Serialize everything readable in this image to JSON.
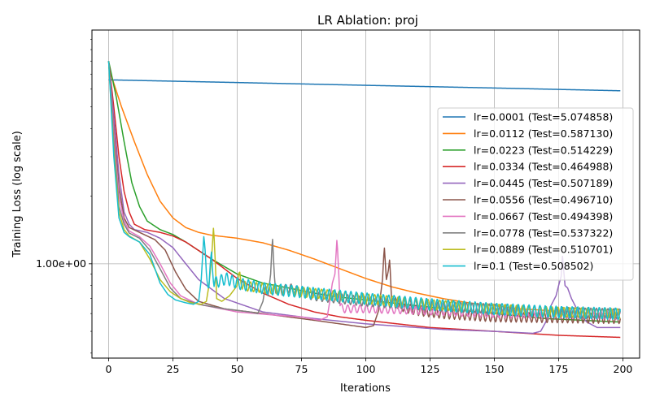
{
  "chart_data": {
    "type": "line",
    "title": "LR Ablation: proj",
    "xlabel": "Iterations",
    "ylabel": "Training Loss (log scale)",
    "xlim": [
      -6.5,
      206.5
    ],
    "ylim": [
      0.38,
      11.0
    ],
    "y_scale": "log",
    "x_ticks": [
      0,
      25,
      50,
      75,
      100,
      125,
      150,
      175,
      200
    ],
    "y_ticks": [
      {
        "value": 1.0,
        "label": "1.00e+00"
      }
    ],
    "grid": true,
    "legend_position": "right",
    "series": [
      {
        "name": "lr=0.0001 (Test=5.074858)",
        "color": "#1f77b4",
        "points": [
          [
            0,
            6.6
          ],
          [
            50,
            6.42
          ],
          [
            100,
            6.24
          ],
          [
            150,
            6.07
          ],
          [
            199,
            5.9
          ]
        ]
      },
      {
        "name": "lr=0.0112 (Test=0.587130)",
        "color": "#ff7f0e",
        "points": [
          [
            0,
            7.5
          ],
          [
            5,
            5.0
          ],
          [
            10,
            3.5
          ],
          [
            15,
            2.5
          ],
          [
            20,
            1.9
          ],
          [
            25,
            1.6
          ],
          [
            30,
            1.45
          ],
          [
            35,
            1.38
          ],
          [
            40,
            1.34
          ],
          [
            50,
            1.3
          ],
          [
            60,
            1.24
          ],
          [
            70,
            1.15
          ],
          [
            80,
            1.05
          ],
          [
            90,
            0.95
          ],
          [
            100,
            0.86
          ],
          [
            110,
            0.79
          ],
          [
            120,
            0.74
          ],
          [
            130,
            0.7
          ],
          [
            140,
            0.67
          ],
          [
            150,
            0.65
          ],
          [
            160,
            0.63
          ],
          [
            170,
            0.62
          ],
          [
            180,
            0.61
          ],
          [
            190,
            0.6
          ],
          [
            199,
            0.6
          ]
        ]
      },
      {
        "name": "lr=0.0223 (Test=0.514229)",
        "color": "#2ca02c",
        "points": [
          [
            0,
            8.0
          ],
          [
            3,
            5.5
          ],
          [
            6,
            3.5
          ],
          [
            9,
            2.3
          ],
          [
            12,
            1.8
          ],
          [
            15,
            1.55
          ],
          [
            20,
            1.42
          ],
          [
            25,
            1.35
          ],
          [
            30,
            1.25
          ],
          [
            40,
            1.05
          ],
          [
            50,
            0.9
          ],
          [
            60,
            0.82
          ],
          [
            70,
            0.78
          ],
          [
            80,
            0.74
          ],
          [
            90,
            0.71
          ],
          [
            100,
            0.69
          ],
          [
            120,
            0.65
          ],
          [
            150,
            0.6
          ],
          [
            170,
            0.57
          ],
          [
            199,
            0.55
          ]
        ]
      },
      {
        "name": "lr=0.0334 (Test=0.464988)",
        "color": "#d62728",
        "points": [
          [
            0,
            8.0
          ],
          [
            2,
            5.0
          ],
          [
            4,
            3.0
          ],
          [
            6,
            2.1
          ],
          [
            8,
            1.7
          ],
          [
            10,
            1.5
          ],
          [
            14,
            1.42
          ],
          [
            20,
            1.38
          ],
          [
            25,
            1.33
          ],
          [
            30,
            1.25
          ],
          [
            40,
            1.05
          ],
          [
            50,
            0.86
          ],
          [
            60,
            0.74
          ],
          [
            70,
            0.66
          ],
          [
            80,
            0.61
          ],
          [
            90,
            0.58
          ],
          [
            100,
            0.56
          ],
          [
            125,
            0.52
          ],
          [
            150,
            0.5
          ],
          [
            175,
            0.48
          ],
          [
            199,
            0.47
          ]
        ]
      },
      {
        "name": "lr=0.0445 (Test=0.507189)",
        "color": "#9467bd",
        "points": [
          [
            0,
            8.0
          ],
          [
            2,
            4.5
          ],
          [
            4,
            2.5
          ],
          [
            6,
            1.7
          ],
          [
            8,
            1.5
          ],
          [
            10,
            1.42
          ],
          [
            15,
            1.38
          ],
          [
            20,
            1.3
          ],
          [
            25,
            1.18
          ],
          [
            30,
            1.0
          ],
          [
            35,
            0.85
          ],
          [
            45,
            0.7
          ],
          [
            60,
            0.61
          ],
          [
            80,
            0.57
          ],
          [
            100,
            0.54
          ],
          [
            130,
            0.51
          ],
          [
            150,
            0.5
          ],
          [
            165,
            0.49
          ],
          [
            168,
            0.5
          ],
          [
            170,
            0.55
          ],
          [
            172,
            0.65
          ],
          [
            174,
            0.72
          ],
          [
            175,
            0.8
          ],
          [
            176,
            0.88
          ],
          [
            176.5,
            1.08
          ],
          [
            177.5,
            0.8
          ],
          [
            178.5,
            0.78
          ],
          [
            180,
            0.7
          ],
          [
            183,
            0.6
          ],
          [
            186,
            0.55
          ],
          [
            190,
            0.52
          ],
          [
            199,
            0.52
          ]
        ]
      },
      {
        "name": "lr=0.0556 (Test=0.496710)",
        "color": "#8c564b",
        "points": [
          [
            0,
            8.0
          ],
          [
            2,
            4.0
          ],
          [
            4,
            2.2
          ],
          [
            6,
            1.6
          ],
          [
            8,
            1.45
          ],
          [
            12,
            1.38
          ],
          [
            18,
            1.28
          ],
          [
            22,
            1.15
          ],
          [
            26,
            0.92
          ],
          [
            30,
            0.77
          ],
          [
            35,
            0.68
          ],
          [
            45,
            0.63
          ],
          [
            60,
            0.6
          ],
          [
            80,
            0.56
          ],
          [
            95,
            0.53
          ],
          [
            100,
            0.52
          ],
          [
            103,
            0.53
          ],
          [
            105,
            0.62
          ],
          [
            106.5,
            0.85
          ],
          [
            107.2,
            1.2
          ],
          [
            108,
            0.85
          ],
          [
            108.7,
            0.92
          ],
          [
            109.3,
            1.05
          ],
          [
            110,
            0.7
          ],
          [
            111,
            0.68
          ],
          [
            115,
            0.64
          ],
          [
            120,
            0.62
          ],
          [
            130,
            0.6
          ],
          [
            150,
            0.58
          ],
          [
            199,
            0.57
          ]
        ]
      },
      {
        "name": "lr=0.0667 (Test=0.494398)",
        "color": "#e377c2",
        "points": [
          [
            0,
            8.0
          ],
          [
            2,
            3.8
          ],
          [
            4,
            2.0
          ],
          [
            6,
            1.55
          ],
          [
            8,
            1.4
          ],
          [
            12,
            1.32
          ],
          [
            16,
            1.2
          ],
          [
            20,
            1.0
          ],
          [
            24,
            0.82
          ],
          [
            28,
            0.72
          ],
          [
            35,
            0.66
          ],
          [
            50,
            0.61
          ],
          [
            65,
            0.59
          ],
          [
            75,
            0.58
          ],
          [
            82,
            0.56
          ],
          [
            85,
            0.58
          ],
          [
            86,
            0.68
          ],
          [
            87,
            0.82
          ],
          [
            88,
            0.9
          ],
          [
            88.8,
            1.3
          ],
          [
            89.5,
            0.9
          ],
          [
            90,
            0.65
          ],
          [
            91,
            0.63
          ],
          [
            100,
            0.63
          ],
          [
            120,
            0.62
          ],
          [
            150,
            0.6
          ],
          [
            199,
            0.59
          ]
        ]
      },
      {
        "name": "lr=0.0778 (Test=0.537322)",
        "color": "#7f7f7f",
        "points": [
          [
            0,
            8.0
          ],
          [
            2,
            3.5
          ],
          [
            4,
            1.8
          ],
          [
            6,
            1.5
          ],
          [
            8,
            1.37
          ],
          [
            12,
            1.3
          ],
          [
            16,
            1.15
          ],
          [
            20,
            0.95
          ],
          [
            24,
            0.78
          ],
          [
            28,
            0.7
          ],
          [
            35,
            0.66
          ],
          [
            45,
            0.63
          ],
          [
            55,
            0.61
          ],
          [
            58,
            0.6
          ],
          [
            60,
            0.68
          ],
          [
            61,
            0.8
          ],
          [
            62,
            0.72
          ],
          [
            63,
            0.9
          ],
          [
            63.7,
            1.32
          ],
          [
            64.4,
            0.9
          ],
          [
            65,
            0.74
          ],
          [
            70,
            0.78
          ],
          [
            80,
            0.72
          ],
          [
            100,
            0.68
          ],
          [
            125,
            0.65
          ],
          [
            150,
            0.63
          ],
          [
            175,
            0.61
          ],
          [
            199,
            0.6
          ]
        ]
      },
      {
        "name": "lr=0.0889 (Test=0.510701)",
        "color": "#bcbd22",
        "points": [
          [
            0,
            8.0
          ],
          [
            2,
            3.2
          ],
          [
            4,
            1.7
          ],
          [
            6,
            1.42
          ],
          [
            8,
            1.33
          ],
          [
            12,
            1.25
          ],
          [
            16,
            1.05
          ],
          [
            20,
            0.85
          ],
          [
            24,
            0.75
          ],
          [
            28,
            0.7
          ],
          [
            32,
            0.67
          ],
          [
            36,
            0.66
          ],
          [
            38,
            0.68
          ],
          [
            39,
            0.8
          ],
          [
            40,
            1.05
          ],
          [
            40.8,
            1.47
          ],
          [
            41.5,
            1.0
          ],
          [
            42,
            0.7
          ],
          [
            44,
            0.68
          ],
          [
            47,
            0.72
          ],
          [
            50,
            0.8
          ],
          [
            51,
            0.9
          ],
          [
            52,
            0.8
          ],
          [
            60,
            0.78
          ],
          [
            75,
            0.75
          ],
          [
            100,
            0.7
          ],
          [
            125,
            0.66
          ],
          [
            150,
            0.63
          ],
          [
            175,
            0.61
          ],
          [
            199,
            0.6
          ]
        ]
      },
      {
        "name": "lr=0.1 (Test=0.508502)",
        "color": "#17becf",
        "points": [
          [
            0,
            8.0
          ],
          [
            2,
            3.0
          ],
          [
            4,
            1.6
          ],
          [
            6,
            1.38
          ],
          [
            8,
            1.32
          ],
          [
            12,
            1.25
          ],
          [
            16,
            1.1
          ],
          [
            18,
            0.95
          ],
          [
            20,
            0.82
          ],
          [
            23,
            0.73
          ],
          [
            26,
            0.69
          ],
          [
            30,
            0.67
          ],
          [
            33,
            0.66
          ],
          [
            35,
            0.68
          ],
          [
            36,
            0.85
          ],
          [
            37,
            1.32
          ],
          [
            38,
            0.9
          ],
          [
            39,
            0.8
          ],
          [
            40,
            1.1
          ],
          [
            41,
            0.82
          ],
          [
            43,
            0.84
          ],
          [
            46,
            0.86
          ],
          [
            50,
            0.82
          ],
          [
            60,
            0.78
          ],
          [
            75,
            0.75
          ],
          [
            100,
            0.7
          ],
          [
            125,
            0.66
          ],
          [
            150,
            0.63
          ],
          [
            175,
            0.61
          ],
          [
            199,
            0.6
          ]
        ]
      }
    ],
    "oscillations": [
      {
        "series": 9,
        "from": 37,
        "to": 199,
        "period": 2.1,
        "amplitude": 0.06
      },
      {
        "series": 8,
        "from": 50,
        "to": 199,
        "period": 2.3,
        "amplitude": 0.05
      },
      {
        "series": 7,
        "from": 66,
        "to": 199,
        "period": 2.2,
        "amplitude": 0.05
      },
      {
        "series": 5,
        "from": 111,
        "to": 199,
        "period": 2.0,
        "amplitude": 0.05
      },
      {
        "series": 6,
        "from": 90,
        "to": 199,
        "period": 2.4,
        "amplitude": 0.04
      },
      {
        "series": 1,
        "from": 0,
        "to": 0,
        "period": 1,
        "amplitude": 0
      }
    ]
  }
}
